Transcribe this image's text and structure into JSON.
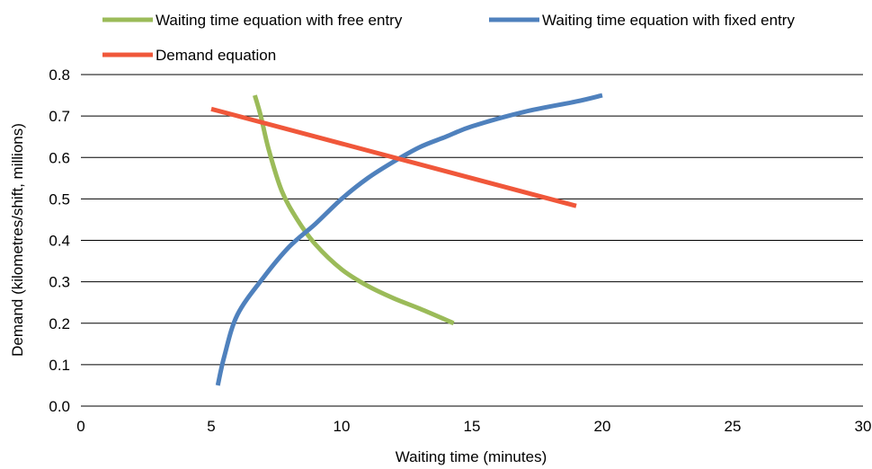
{
  "chart_data": {
    "type": "line",
    "title": "",
    "xlabel": "Waiting time (minutes)",
    "ylabel": "Demand (kilometres/shift, millions)",
    "xlim": [
      0,
      30
    ],
    "ylim": [
      0,
      0.8
    ],
    "x_ticks": [
      "0",
      "5",
      "10",
      "15",
      "20",
      "25",
      "30"
    ],
    "y_ticks": [
      "0.0",
      "0.1",
      "0.2",
      "0.3",
      "0.4",
      "0.5",
      "0.6",
      "0.7",
      "0.8"
    ],
    "grid": "horizontal",
    "legend_position": "top",
    "series": [
      {
        "name": "Waiting time equation with free entry",
        "color": "#9BBB59",
        "points": [
          [
            6.67,
            0.75
          ],
          [
            6.9,
            0.7
          ],
          [
            7.2,
            0.62
          ],
          [
            7.7,
            0.52
          ],
          [
            8.3,
            0.45
          ],
          [
            9.0,
            0.39
          ],
          [
            10.0,
            0.33
          ],
          [
            11.0,
            0.29
          ],
          [
            12.0,
            0.26
          ],
          [
            13.0,
            0.235
          ],
          [
            14.3,
            0.2
          ]
        ]
      },
      {
        "name": "Waiting time equation with fixed entry",
        "color": "#4F81BD",
        "points": [
          [
            5.25,
            0.05
          ],
          [
            5.5,
            0.12
          ],
          [
            6.0,
            0.22
          ],
          [
            7.0,
            0.31
          ],
          [
            8.0,
            0.385
          ],
          [
            9.0,
            0.44
          ],
          [
            10.0,
            0.5
          ],
          [
            11.0,
            0.55
          ],
          [
            12.0,
            0.59
          ],
          [
            13.0,
            0.625
          ],
          [
            14.0,
            0.65
          ],
          [
            15.0,
            0.675
          ],
          [
            17.0,
            0.71
          ],
          [
            19.0,
            0.735
          ],
          [
            20.0,
            0.75
          ]
        ]
      },
      {
        "name": "Demand equation",
        "color": "#F0573A",
        "points": [
          [
            5.0,
            0.717
          ],
          [
            19.0,
            0.483
          ]
        ]
      }
    ]
  }
}
